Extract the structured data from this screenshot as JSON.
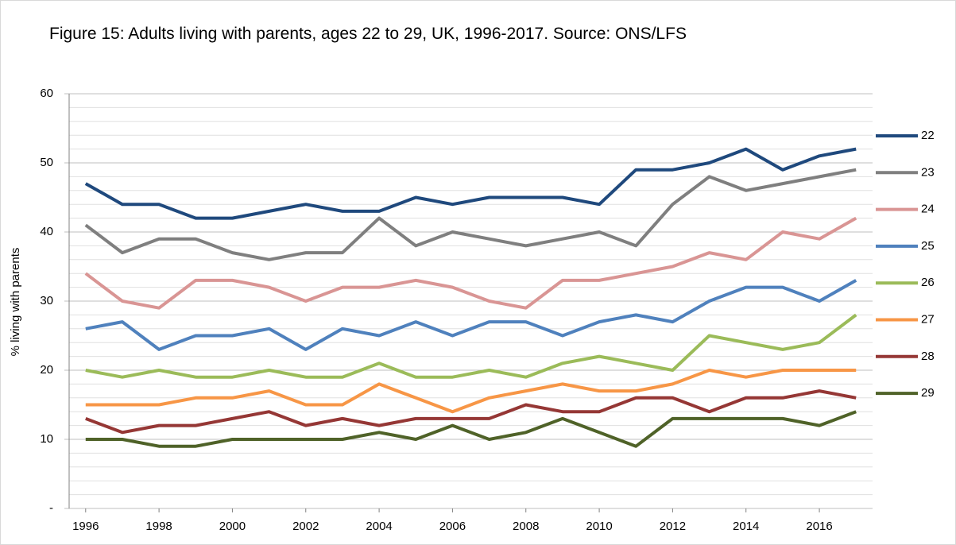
{
  "chart_data": {
    "type": "line",
    "title": "Figure 15: Adults living with parents, ages 22 to 29, UK, 1996-2017. Source: ONS/LFS",
    "y_label": "% living with parents",
    "x": [
      1996,
      1997,
      1998,
      1999,
      2000,
      2001,
      2002,
      2003,
      2004,
      2005,
      2006,
      2007,
      2008,
      2009,
      2010,
      2011,
      2012,
      2013,
      2014,
      2015,
      2016,
      2017
    ],
    "xlim": [
      1995.55,
      2017.45
    ],
    "xticks": [
      1996,
      1998,
      2000,
      2002,
      2004,
      2006,
      2008,
      2010,
      2012,
      2014,
      2016
    ],
    "ylim": [
      0,
      60
    ],
    "yticks": [
      {
        "value": 0,
        "label": "-"
      },
      10,
      20,
      30,
      40,
      50,
      60
    ],
    "minor_gridlines": [
      2,
      4,
      6,
      8,
      12,
      14,
      16,
      18,
      22,
      24,
      26,
      28,
      32,
      34,
      36,
      38,
      42,
      44,
      46,
      48,
      52,
      54,
      56,
      58
    ],
    "grid": true,
    "legend": "right",
    "series": [
      {
        "name": "22",
        "color": "#1f497d",
        "values": [
          47,
          44,
          44,
          42,
          42,
          43,
          44,
          43,
          43,
          45,
          44,
          45,
          45,
          45,
          44,
          49,
          49,
          50,
          52,
          49,
          51,
          52
        ]
      },
      {
        "name": "23",
        "color": "#7f7f7f",
        "values": [
          41,
          37,
          39,
          39,
          37,
          36,
          37,
          37,
          42,
          38,
          40,
          39,
          38,
          39,
          40,
          38,
          44,
          48,
          46,
          47,
          48,
          49
        ]
      },
      {
        "name": "24",
        "color": "#d99594",
        "values": [
          34,
          30,
          29,
          33,
          33,
          32,
          30,
          32,
          32,
          33,
          32,
          30,
          29,
          33,
          33,
          34,
          35,
          37,
          36,
          40,
          39,
          42
        ]
      },
      {
        "name": "25",
        "color": "#4f81bd",
        "values": [
          26,
          27,
          23,
          25,
          25,
          26,
          23,
          26,
          25,
          27,
          25,
          27,
          27,
          25,
          27,
          28,
          27,
          30,
          32,
          32,
          30,
          33
        ]
      },
      {
        "name": "26",
        "color": "#9bbb59",
        "values": [
          20,
          19,
          20,
          19,
          19,
          20,
          19,
          19,
          21,
          19,
          19,
          20,
          19,
          21,
          22,
          21,
          20,
          25,
          24,
          23,
          24,
          28
        ]
      },
      {
        "name": "27",
        "color": "#f79646",
        "values": [
          15,
          15,
          15,
          16,
          16,
          17,
          15,
          15,
          18,
          16,
          14,
          16,
          17,
          18,
          17,
          17,
          18,
          20,
          19,
          20,
          20,
          20
        ]
      },
      {
        "name": "28",
        "color": "#953735",
        "values": [
          13,
          11,
          12,
          12,
          13,
          14,
          12,
          13,
          12,
          13,
          13,
          13,
          15,
          14,
          14,
          16,
          16,
          14,
          16,
          16,
          17,
          16
        ]
      },
      {
        "name": "29",
        "color": "#4f6228",
        "values": [
          10,
          10,
          9,
          9,
          10,
          10,
          10,
          10,
          11,
          10,
          12,
          10,
          11,
          13,
          11,
          9,
          13,
          13,
          13,
          13,
          12,
          14
        ]
      }
    ]
  }
}
